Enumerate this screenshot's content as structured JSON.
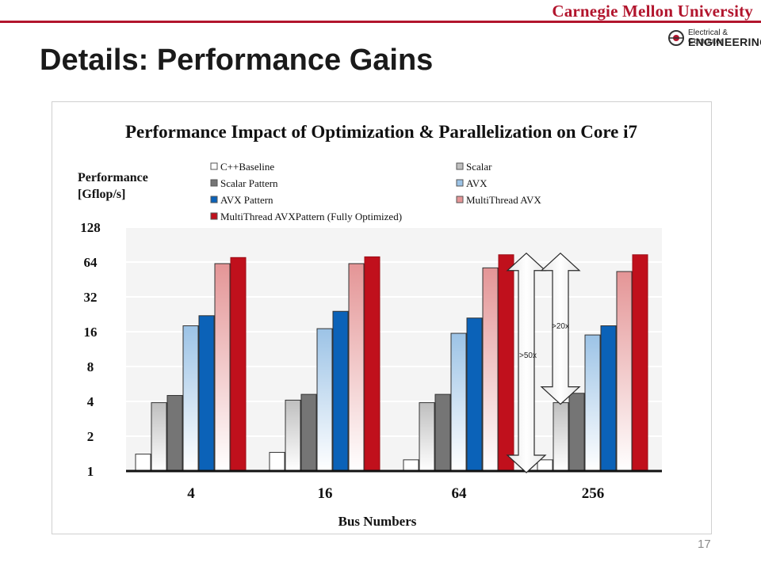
{
  "header": {
    "university": "Carnegie Mellon University",
    "dept_line1": "Electrical & Computer",
    "dept_line2": "ENGINEERING",
    "slide_title": "Details: Performance Gains",
    "page_number": "17",
    "accent_color": "#b2152d"
  },
  "chart_data": {
    "type": "bar",
    "title": "Performance Impact of Optimization & Parallelization on Core i7",
    "ylabel_line1": "Performance",
    "ylabel_line2": "[Gflop/s]",
    "xlabel": "Bus Numbers",
    "yscale": "log2",
    "ylim": [
      1,
      128
    ],
    "yticks": [
      1,
      2,
      4,
      8,
      16,
      32,
      64,
      128
    ],
    "grid": true,
    "legend_position": "top",
    "categories": [
      "4",
      "16",
      "64",
      "256"
    ],
    "series": [
      {
        "name": "C++Baseline",
        "color": "#ffffff",
        "values": [
          1.4,
          1.45,
          1.25,
          1.25
        ]
      },
      {
        "name": "Scalar",
        "color": "#bfbfbf",
        "values": [
          3.9,
          4.1,
          3.9,
          3.9
        ]
      },
      {
        "name": "Scalar Pattern",
        "color": "#757575",
        "values": [
          4.5,
          4.6,
          4.6,
          4.7
        ]
      },
      {
        "name": "AVX",
        "color": "#9cc3e6",
        "values": [
          18,
          17,
          15.5,
          15
        ]
      },
      {
        "name": "AVX Pattern",
        "color": "#0b62b8",
        "values": [
          22,
          24,
          21,
          18
        ]
      },
      {
        "name": "MultiThread AVX",
        "color": "#e49596",
        "values": [
          62,
          62,
          57,
          53
        ]
      },
      {
        "name": "MultiThread AVXPattern (Fully Optimized)",
        "color": "#c0101c",
        "values": [
          70,
          71,
          74,
          74
        ]
      }
    ],
    "annotations": [
      {
        "label": ">50x",
        "from": 1,
        "to": 74
      },
      {
        "label": ">20x",
        "from": 3.9,
        "to": 74
      }
    ]
  }
}
